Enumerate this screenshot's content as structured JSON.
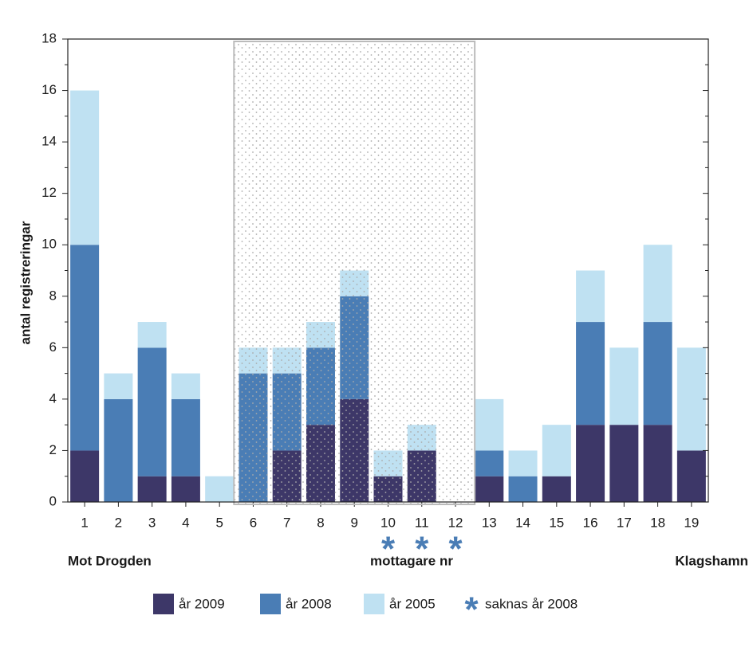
{
  "chart_data": {
    "type": "stacked-bar",
    "y_label": "antal registreringar",
    "categories": [
      "1",
      "2",
      "3",
      "4",
      "5",
      "6",
      "7",
      "8",
      "9",
      "10",
      "11",
      "12",
      "13",
      "14",
      "15",
      "16",
      "17",
      "18",
      "19"
    ],
    "series": [
      {
        "name": "år 2009",
        "color": "#3d3768",
        "values": [
          2,
          0,
          1,
          1,
          0,
          0,
          2,
          3,
          4,
          1,
          2,
          0,
          1,
          0,
          1,
          3,
          3,
          3,
          2
        ]
      },
      {
        "name": "år 2008",
        "color": "#4a7db5",
        "values": [
          8,
          4,
          5,
          3,
          0,
          5,
          3,
          3,
          4,
          0,
          0,
          0,
          1,
          1,
          0,
          4,
          0,
          4,
          0
        ]
      },
      {
        "name": "år 2005",
        "color": "#bfe1f2",
        "values": [
          6,
          1,
          1,
          1,
          1,
          1,
          1,
          1,
          1,
          1,
          1,
          0,
          2,
          1,
          2,
          2,
          3,
          3,
          4
        ]
      }
    ],
    "ylim": [
      0,
      18
    ],
    "yticks": [
      0,
      2,
      4,
      6,
      8,
      10,
      12,
      14,
      16,
      18
    ],
    "highlight": [
      "6",
      "12"
    ],
    "missing": {
      "symbol": "*",
      "label": "saknas år 2008",
      "color": "#4a7db5",
      "categories": [
        "10",
        "11",
        "12"
      ]
    },
    "annotations": [
      "Mot Drogden",
      "mottagare nr",
      "Klagshamn"
    ]
  }
}
